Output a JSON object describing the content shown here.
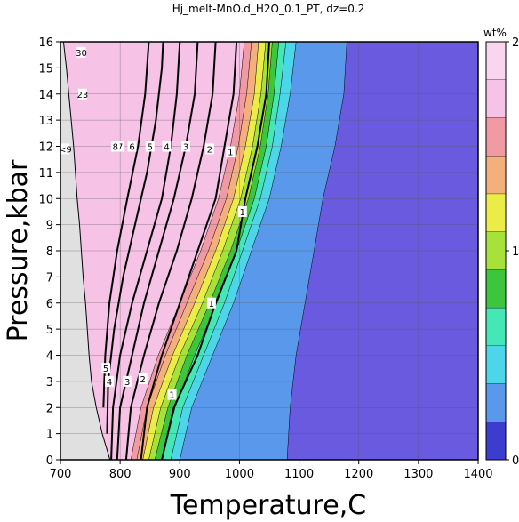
{
  "chart_data": {
    "type": "heatmap",
    "title": "Hj_melt-MnO.d_H2O_0.1_PT, dz=0.2",
    "xlabel": "Temperature,C",
    "ylabel": "Pressure,kbar",
    "xlim": [
      700,
      1400
    ],
    "ylim": [
      0,
      16
    ],
    "x_ticks": [
      700,
      800,
      900,
      1000,
      1100,
      1200,
      1300,
      1400
    ],
    "y_ticks": [
      0,
      1,
      2,
      3,
      4,
      5,
      6,
      7,
      8,
      9,
      10,
      11,
      12,
      13,
      14,
      15,
      16
    ],
    "grid": true,
    "colorbar": {
      "label": "wt%",
      "range": [
        0,
        2
      ],
      "ticks": [
        0,
        1,
        2
      ],
      "colors": [
        "#3c3ccf",
        "#5a98ec",
        "#4dd5ea",
        "#45e7b6",
        "#3ec53e",
        "#a6e23a",
        "#ecec48",
        "#f3b07c",
        "#f29aa3",
        "#f6c2e6",
        "#f9d5ee"
      ]
    },
    "bands": [
      {
        "level": 0.2,
        "color": "#5a98ec",
        "boundary": [
          [
            1080,
            0
          ],
          [
            1085,
            2
          ],
          [
            1095,
            4
          ],
          [
            1110,
            6
          ],
          [
            1125,
            8
          ],
          [
            1140,
            10
          ],
          [
            1160,
            12
          ],
          [
            1175,
            14
          ],
          [
            1180,
            16
          ]
        ]
      },
      {
        "level": 0.4,
        "color": "#4dd5ea",
        "boundary": [
          [
            900,
            0
          ],
          [
            920,
            2
          ],
          [
            955,
            4
          ],
          [
            990,
            6
          ],
          [
            1020,
            8
          ],
          [
            1050,
            10
          ],
          [
            1070,
            12
          ],
          [
            1085,
            14
          ],
          [
            1095,
            16
          ]
        ]
      },
      {
        "level": 0.6,
        "color": "#45e7b6",
        "boundary": [
          [
            885,
            0
          ],
          [
            905,
            2
          ],
          [
            940,
            4
          ],
          [
            975,
            6
          ],
          [
            1005,
            8
          ],
          [
            1035,
            10
          ],
          [
            1055,
            12
          ],
          [
            1068,
            14
          ],
          [
            1078,
            16
          ]
        ]
      },
      {
        "level": 0.8,
        "color": "#3ec53e",
        "boundary": [
          [
            870,
            0
          ],
          [
            892,
            2
          ],
          [
            925,
            4
          ],
          [
            962,
            6
          ],
          [
            995,
            8
          ],
          [
            1025,
            10
          ],
          [
            1045,
            12
          ],
          [
            1058,
            14
          ],
          [
            1066,
            16
          ]
        ]
      },
      {
        "level": 1.0,
        "color": "#a6e23a",
        "boundary": [
          [
            858,
            0
          ],
          [
            880,
            2
          ],
          [
            912,
            4
          ],
          [
            950,
            6
          ],
          [
            985,
            8
          ],
          [
            1015,
            10
          ],
          [
            1035,
            12
          ],
          [
            1048,
            14
          ],
          [
            1055,
            16
          ]
        ]
      },
      {
        "level": 1.2,
        "color": "#ecec48",
        "boundary": [
          [
            848,
            0
          ],
          [
            868,
            2
          ],
          [
            900,
            4
          ],
          [
            938,
            6
          ],
          [
            972,
            8
          ],
          [
            1002,
            10
          ],
          [
            1022,
            12
          ],
          [
            1036,
            14
          ],
          [
            1044,
            16
          ]
        ]
      },
      {
        "level": 1.4,
        "color": "#f3b07c",
        "boundary": [
          [
            838,
            0
          ],
          [
            856,
            2
          ],
          [
            888,
            4
          ],
          [
            925,
            6
          ],
          [
            960,
            8
          ],
          [
            990,
            10
          ],
          [
            1010,
            12
          ],
          [
            1025,
            14
          ],
          [
            1032,
            16
          ]
        ]
      },
      {
        "level": 1.6,
        "color": "#f29aa3",
        "boundary": [
          [
            828,
            0
          ],
          [
            845,
            2
          ],
          [
            876,
            4
          ],
          [
            912,
            6
          ],
          [
            948,
            8
          ],
          [
            978,
            10
          ],
          [
            998,
            12
          ],
          [
            1012,
            14
          ],
          [
            1020,
            16
          ]
        ]
      },
      {
        "level": 1.8,
        "color": "#f6c2e6",
        "boundary": [
          [
            818,
            0
          ],
          [
            835,
            2
          ],
          [
            864,
            4
          ],
          [
            900,
            6
          ],
          [
            935,
            8
          ],
          [
            965,
            10
          ],
          [
            985,
            12
          ],
          [
            1000,
            14
          ],
          [
            1008,
            16
          ]
        ]
      }
    ],
    "solidus": [
      [
        783,
        0
      ],
      [
        770,
        1
      ],
      [
        760,
        2
      ],
      [
        752,
        3
      ],
      [
        748,
        4
      ],
      [
        745,
        5
      ],
      [
        742,
        6
      ],
      [
        738,
        7
      ],
      [
        735,
        8
      ],
      [
        732,
        9
      ],
      [
        728,
        10
      ],
      [
        725,
        11
      ],
      [
        722,
        12
      ],
      [
        718,
        13
      ],
      [
        714,
        14
      ],
      [
        710,
        15
      ],
      [
        705,
        16
      ]
    ],
    "contours": [
      {
        "label": "1",
        "points": [
          [
            870,
            0
          ],
          [
            890,
            2
          ],
          [
            930,
            4
          ],
          [
            960,
            6
          ],
          [
            995,
            8
          ],
          [
            1010,
            10
          ],
          [
            1030,
            12
          ],
          [
            1045,
            14
          ],
          [
            1050,
            16
          ]
        ],
        "bold": true
      },
      {
        "label": "2",
        "points": [
          [
            835,
            0
          ],
          [
            845,
            2
          ],
          [
            870,
            4
          ],
          [
            900,
            6
          ],
          [
            930,
            8
          ],
          [
            960,
            10
          ],
          [
            975,
            12
          ],
          [
            990,
            14
          ],
          [
            995,
            16
          ]
        ],
        "bold": true
      },
      {
        "label": "3",
        "points": [
          [
            810,
            0
          ],
          [
            818,
            2
          ],
          [
            840,
            4
          ],
          [
            865,
            6
          ],
          [
            895,
            8
          ],
          [
            920,
            10
          ],
          [
            940,
            12
          ],
          [
            955,
            14
          ],
          [
            960,
            16
          ]
        ],
        "bold": true
      },
      {
        "label": "4",
        "points": [
          [
            795,
            0
          ],
          [
            800,
            2
          ],
          [
            820,
            4
          ],
          [
            840,
            6
          ],
          [
            865,
            8
          ],
          [
            890,
            10
          ],
          [
            910,
            12
          ],
          [
            925,
            14
          ],
          [
            930,
            16
          ]
        ],
        "bold": true
      },
      {
        "label": "5",
        "points": [
          [
            785,
            0
          ],
          [
            788,
            2
          ],
          [
            800,
            4
          ],
          [
            820,
            6
          ],
          [
            845,
            8
          ],
          [
            870,
            10
          ],
          [
            885,
            12
          ],
          [
            895,
            14
          ],
          [
            900,
            16
          ]
        ],
        "bold": true
      },
      {
        "label": "6",
        "points": [
          [
            778,
            1
          ],
          [
            780,
            3
          ],
          [
            790,
            5
          ],
          [
            805,
            7
          ],
          [
            825,
            9
          ],
          [
            845,
            11
          ],
          [
            860,
            13
          ],
          [
            870,
            15
          ],
          [
            872,
            16
          ]
        ],
        "bold": true
      },
      {
        "label": "7",
        "points": [
          [
            772,
            2
          ],
          [
            775,
            4
          ],
          [
            782,
            6
          ],
          [
            795,
            8
          ],
          [
            812,
            10
          ],
          [
            830,
            12
          ],
          [
            842,
            14
          ],
          [
            848,
            16
          ]
        ],
        "bold": true
      }
    ],
    "contour_labels": [
      {
        "text": "1",
        "x": 985,
        "y": 11.8
      },
      {
        "text": "1",
        "x": 1005,
        "y": 9.5
      },
      {
        "text": "1",
        "x": 953,
        "y": 6.0
      },
      {
        "text": "1",
        "x": 887,
        "y": 2.5
      },
      {
        "text": "2",
        "x": 950,
        "y": 11.9
      },
      {
        "text": "2",
        "x": 838,
        "y": 3.1
      },
      {
        "text": "3",
        "x": 910,
        "y": 12.0
      },
      {
        "text": "3",
        "x": 812,
        "y": 3.0
      },
      {
        "text": "4",
        "x": 878,
        "y": 12.0
      },
      {
        "text": "4",
        "x": 782,
        "y": 3.0
      },
      {
        "text": "5",
        "x": 850,
        "y": 12.0
      },
      {
        "text": "5",
        "x": 776,
        "y": 3.5
      },
      {
        "text": "6",
        "x": 820,
        "y": 12.0
      },
      {
        "text": "7",
        "x": 800,
        "y": 12.0
      },
      {
        "text": "8",
        "x": 792,
        "y": 12.0
      },
      {
        "text": "23",
        "x": 737,
        "y": 14.0
      },
      {
        "text": "30",
        "x": 735,
        "y": 15.6
      },
      {
        "text": "<9",
        "x": 708,
        "y": 11.9
      }
    ]
  }
}
